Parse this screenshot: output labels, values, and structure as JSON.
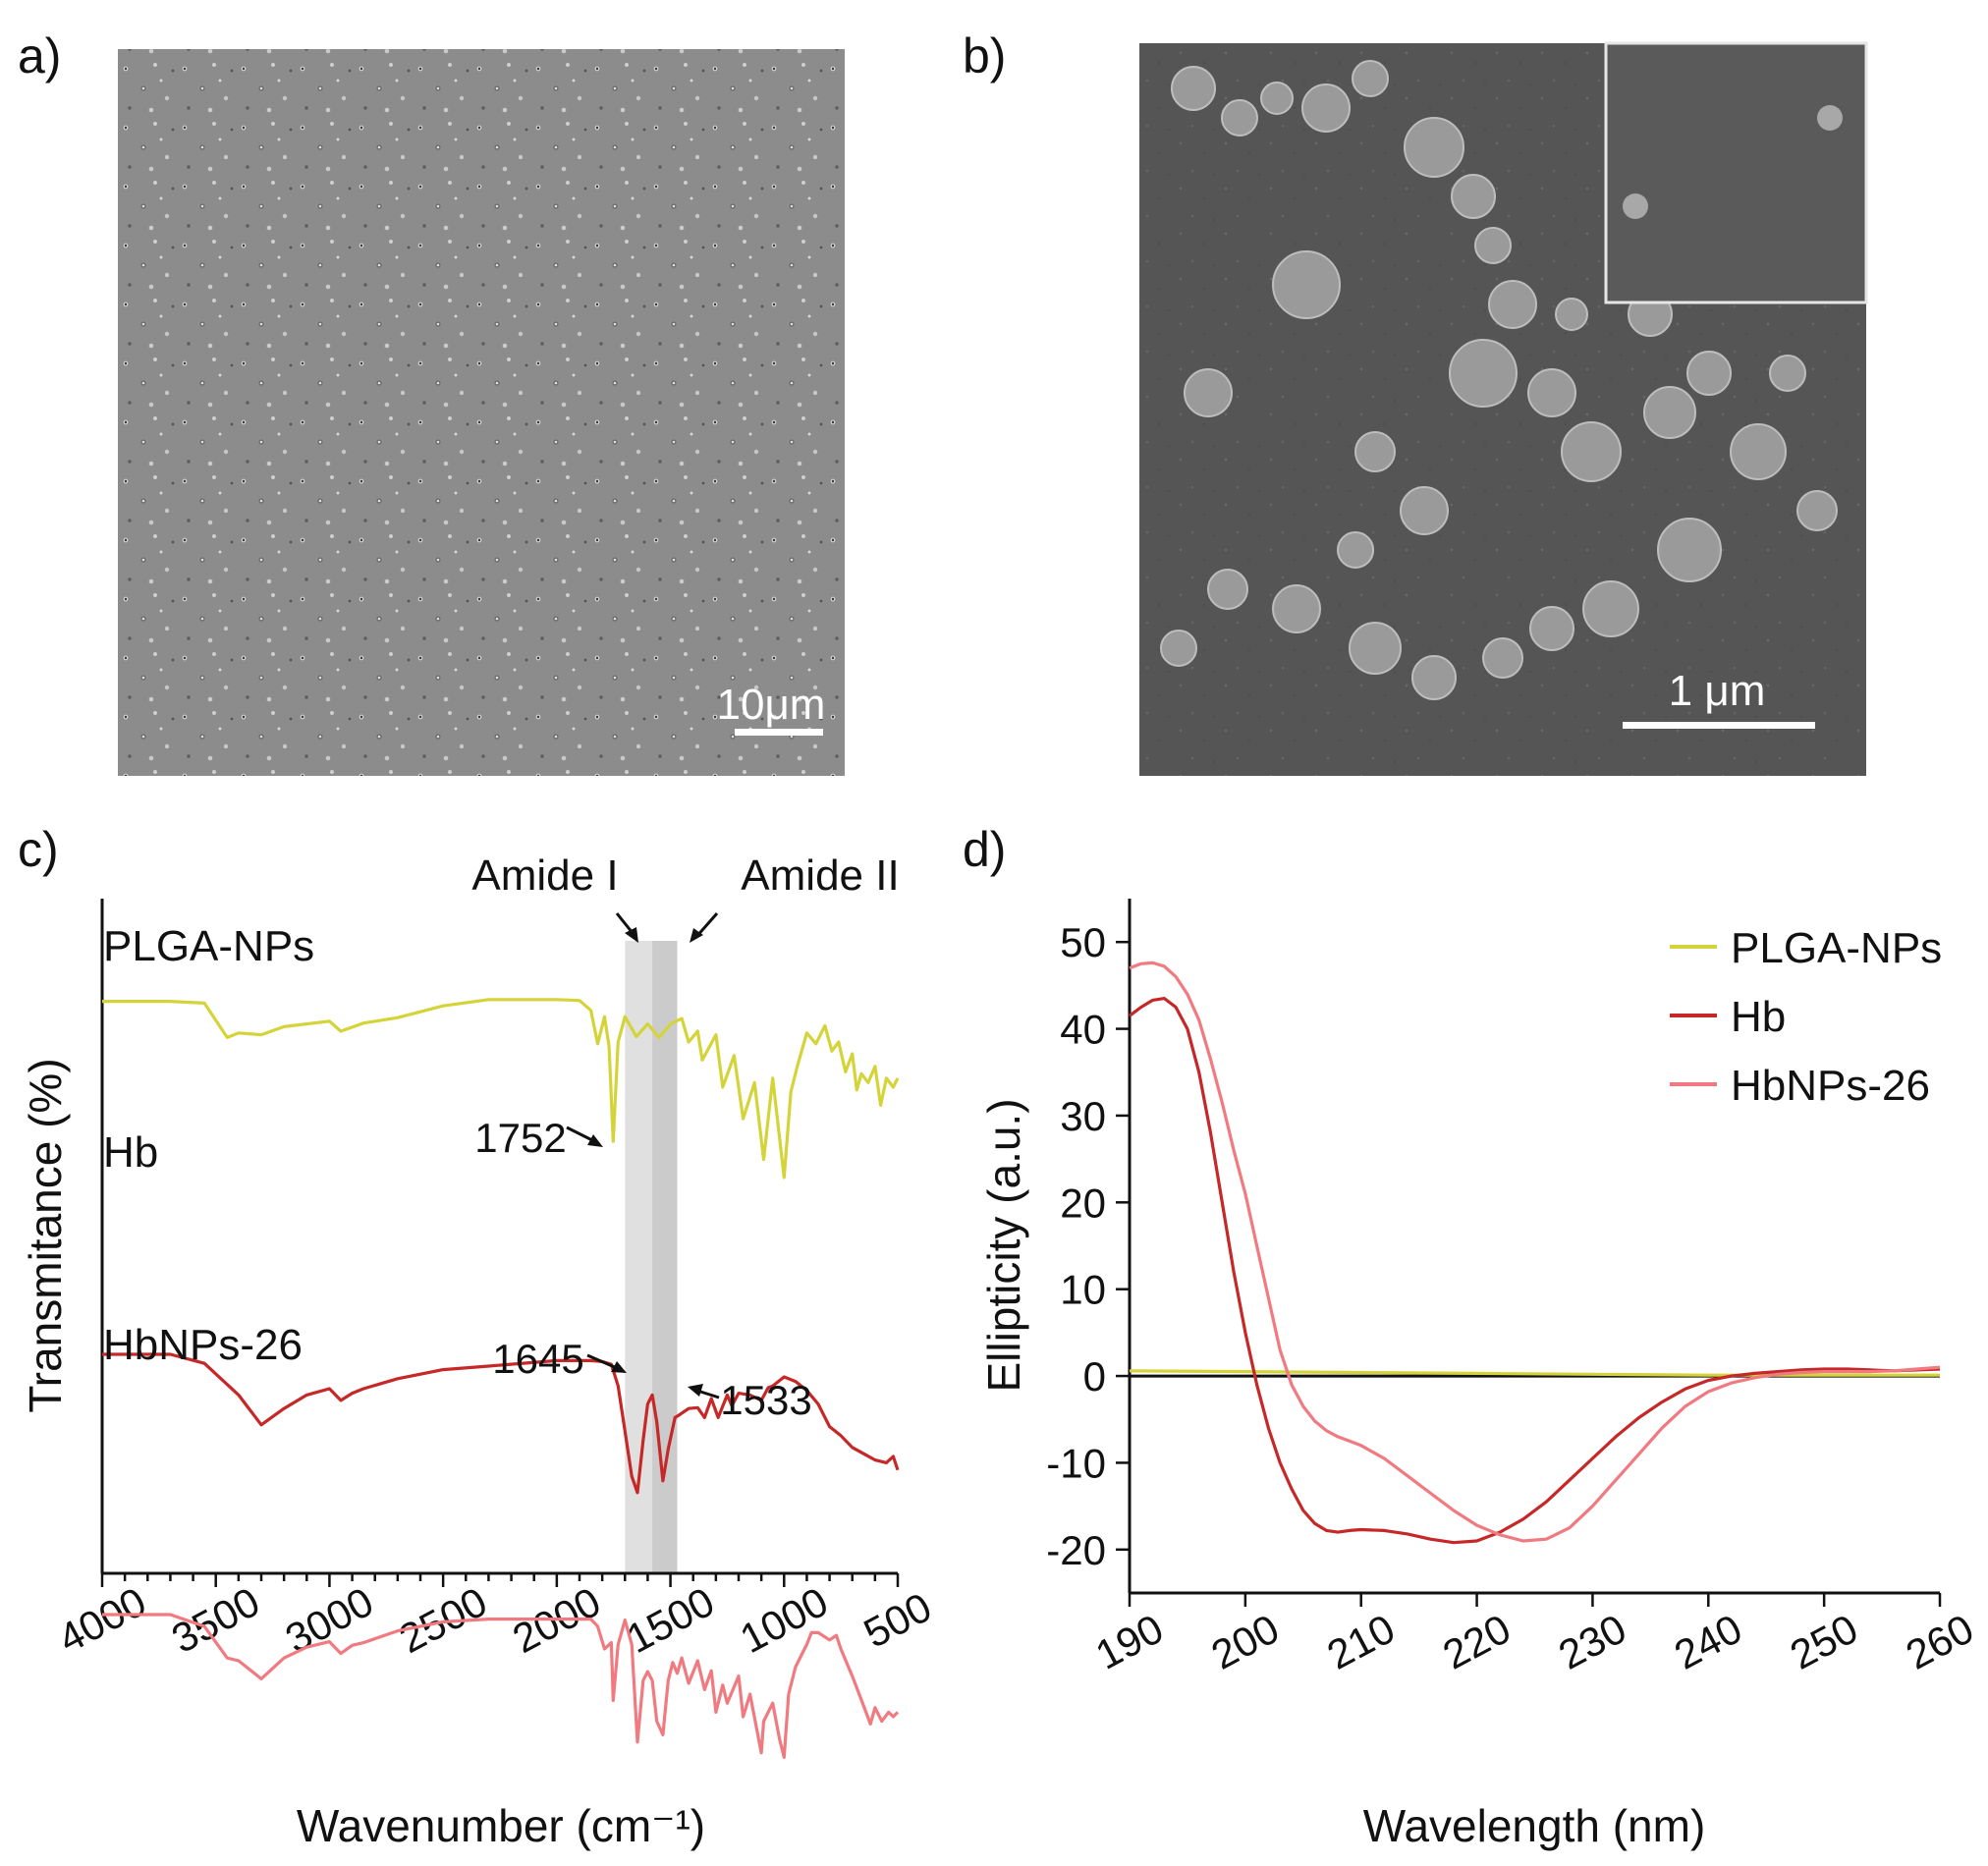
{
  "panels": {
    "a": {
      "label": "a)",
      "scale_bar": "10μm"
    },
    "b": {
      "label": "b)",
      "scale_bar": "1 μm"
    },
    "c": {
      "label": "c)"
    },
    "d": {
      "label": "d)"
    }
  },
  "chart_data": [
    {
      "type": "line",
      "panel": "c",
      "xlabel": "Wavenumber (cm⁻¹)",
      "ylabel": "Transmitance (%)",
      "xlim": [
        4000,
        500
      ],
      "x_ticks": [
        "4000",
        "3500",
        "3000",
        "2500",
        "2000",
        "1500",
        "1000",
        "500"
      ],
      "highlight_bands": [
        {
          "name": "Amide I",
          "from": 1700,
          "to": 1580
        },
        {
          "name": "Amide II",
          "from": 1580,
          "to": 1470
        }
      ],
      "series": [
        {
          "name": "PLGA-NPs",
          "color": "#d4d43a",
          "points": [
            [
              4000,
              0.5
            ],
            [
              3700,
              0.5
            ],
            [
              3550,
              0.7
            ],
            [
              3450,
              4.5
            ],
            [
              3400,
              4.0
            ],
            [
              3300,
              4.2
            ],
            [
              3200,
              3.3
            ],
            [
              3000,
              2.7
            ],
            [
              2950,
              3.8
            ],
            [
              2850,
              2.9
            ],
            [
              2700,
              2.3
            ],
            [
              2500,
              1.0
            ],
            [
              2300,
              0.3
            ],
            [
              2000,
              0.3
            ],
            [
              1900,
              0.4
            ],
            [
              1850,
              1.5
            ],
            [
              1820,
              5.2
            ],
            [
              1790,
              2.2
            ],
            [
              1770,
              5.5
            ],
            [
              1752,
              16.0
            ],
            [
              1730,
              5.0
            ],
            [
              1700,
              2.2
            ],
            [
              1650,
              4.4
            ],
            [
              1600,
              3.0
            ],
            [
              1550,
              4.5
            ],
            [
              1500,
              3.0
            ],
            [
              1450,
              2.4
            ],
            [
              1420,
              5.0
            ],
            [
              1380,
              3.8
            ],
            [
              1360,
              7.0
            ],
            [
              1300,
              4.2
            ],
            [
              1270,
              10.0
            ],
            [
              1220,
              6.5
            ],
            [
              1180,
              13.5
            ],
            [
              1130,
              9.5
            ],
            [
              1090,
              18.0
            ],
            [
              1050,
              9.0
            ],
            [
              1000,
              20.0
            ],
            [
              970,
              10.5
            ],
            [
              940,
              7.5
            ],
            [
              900,
              4.0
            ],
            [
              860,
              5.2
            ],
            [
              820,
              3.2
            ],
            [
              790,
              6.0
            ],
            [
              760,
              5.0
            ],
            [
              730,
              8.3
            ],
            [
              700,
              6.3
            ],
            [
              680,
              10.3
            ],
            [
              660,
              8.5
            ],
            [
              630,
              9.5
            ],
            [
              600,
              7.7
            ],
            [
              575,
              12.0
            ],
            [
              550,
              9.0
            ],
            [
              520,
              10.0
            ],
            [
              500,
              9.0
            ]
          ]
        },
        {
          "name": "Hb",
          "color": "#c62828",
          "points": [
            [
              4000,
              17.5
            ],
            [
              3700,
              17.5
            ],
            [
              3550,
              18.5
            ],
            [
              3400,
              22.0
            ],
            [
              3300,
              25.3
            ],
            [
              3200,
              23.5
            ],
            [
              3100,
              22.0
            ],
            [
              3000,
              21.3
            ],
            [
              2950,
              22.6
            ],
            [
              2900,
              21.8
            ],
            [
              2850,
              21.3
            ],
            [
              2700,
              20.2
            ],
            [
              2500,
              19.2
            ],
            [
              2300,
              18.8
            ],
            [
              2000,
              18.2
            ],
            [
              1850,
              18.2
            ],
            [
              1800,
              18.3
            ],
            [
              1760,
              18.6
            ],
            [
              1730,
              21.0
            ],
            [
              1700,
              26.0
            ],
            [
              1670,
              31.0
            ],
            [
              1645,
              32.8
            ],
            [
              1620,
              27.0
            ],
            [
              1600,
              23.0
            ],
            [
              1580,
              22.0
            ],
            [
              1560,
              25.0
            ],
            [
              1533,
              31.5
            ],
            [
              1510,
              28.0
            ],
            [
              1480,
              24.5
            ],
            [
              1460,
              24.2
            ],
            [
              1420,
              23.5
            ],
            [
              1380,
              23.4
            ],
            [
              1350,
              24.5
            ],
            [
              1320,
              22.4
            ],
            [
              1290,
              24.5
            ],
            [
              1250,
              22.0
            ],
            [
              1230,
              23.2
            ],
            [
              1200,
              21.8
            ],
            [
              1150,
              22.0
            ],
            [
              1100,
              22.6
            ],
            [
              1070,
              21.2
            ],
            [
              1050,
              21.0
            ],
            [
              1000,
              20.0
            ],
            [
              950,
              20.5
            ],
            [
              900,
              21.5
            ],
            [
              850,
              23.0
            ],
            [
              800,
              25.5
            ],
            [
              750,
              26.5
            ],
            [
              700,
              27.8
            ],
            [
              650,
              28.5
            ],
            [
              600,
              29.2
            ],
            [
              550,
              29.5
            ],
            [
              520,
              28.8
            ],
            [
              500,
              30.3
            ]
          ]
        },
        {
          "name": "HbNPs-26",
          "color": "#f07a80",
          "points": [
            [
              4000,
              26.2
            ],
            [
              3700,
              26.2
            ],
            [
              3550,
              27.5
            ],
            [
              3450,
              31.0
            ],
            [
              3400,
              31.3
            ],
            [
              3300,
              33.3
            ],
            [
              3200,
              31.0
            ],
            [
              3100,
              29.8
            ],
            [
              3000,
              29.2
            ],
            [
              2950,
              30.5
            ],
            [
              2900,
              29.6
            ],
            [
              2850,
              29.3
            ],
            [
              2700,
              28.0
            ],
            [
              2500,
              27.0
            ],
            [
              2300,
              26.7
            ],
            [
              2000,
              26.7
            ],
            [
              1850,
              26.7
            ],
            [
              1820,
              27.5
            ],
            [
              1790,
              30.0
            ],
            [
              1760,
              29.3
            ],
            [
              1752,
              35.7
            ],
            [
              1730,
              29.5
            ],
            [
              1700,
              26.8
            ],
            [
              1670,
              29.5
            ],
            [
              1645,
              40.3
            ],
            [
              1620,
              33.5
            ],
            [
              1600,
              32.5
            ],
            [
              1580,
              33.5
            ],
            [
              1560,
              38.0
            ],
            [
              1533,
              39.5
            ],
            [
              1510,
              33.5
            ],
            [
              1490,
              31.5
            ],
            [
              1470,
              32.7
            ],
            [
              1450,
              31.0
            ],
            [
              1420,
              33.8
            ],
            [
              1380,
              31.3
            ],
            [
              1350,
              34.5
            ],
            [
              1320,
              32.4
            ],
            [
              1300,
              37.0
            ],
            [
              1270,
              34.0
            ],
            [
              1250,
              36.0
            ],
            [
              1200,
              33.0
            ],
            [
              1180,
              37.5
            ],
            [
              1150,
              35.0
            ],
            [
              1100,
              41.5
            ],
            [
              1090,
              38.0
            ],
            [
              1050,
              36.0
            ],
            [
              1020,
              40.0
            ],
            [
              1000,
              42.0
            ],
            [
              980,
              35.0
            ],
            [
              950,
              32.0
            ],
            [
              900,
              29.5
            ],
            [
              880,
              28.2
            ],
            [
              850,
              28.2
            ],
            [
              800,
              29.0
            ],
            [
              770,
              28.5
            ],
            [
              750,
              30.0
            ],
            [
              700,
              33.0
            ],
            [
              650,
              36.3
            ],
            [
              620,
              38.3
            ],
            [
              600,
              36.5
            ],
            [
              570,
              38.0
            ],
            [
              540,
              37.0
            ],
            [
              520,
              37.5
            ],
            [
              500,
              37.0
            ]
          ]
        }
      ],
      "annotations": [
        "1752",
        "1645",
        "1533",
        "Amide I",
        "Amide II"
      ]
    },
    {
      "type": "line",
      "panel": "d",
      "xlabel": "Wavelength (nm)",
      "ylabel": "Ellipticity (a.u.)",
      "xlim": [
        190,
        260
      ],
      "ylim": [
        -25,
        55
      ],
      "x_ticks": [
        "190",
        "200",
        "210",
        "220",
        "230",
        "240",
        "250",
        "260"
      ],
      "y_ticks": [
        "50",
        "40",
        "30",
        "20",
        "10",
        "0",
        "-10",
        "-20"
      ],
      "legend": {
        "placement": "top-right",
        "entries": [
          "PLGA-NPs",
          "Hb",
          "HbNPs-26"
        ]
      },
      "series": [
        {
          "name": "PLGA-NPs",
          "color": "#d4d43a",
          "x": [
            190,
            200,
            210,
            220,
            230,
            240,
            250,
            260
          ],
          "y": [
            0.6,
            0.5,
            0.4,
            0.3,
            0.2,
            0.1,
            0.1,
            0.1
          ]
        },
        {
          "name": "Hb",
          "color": "#c62828",
          "x": [
            190,
            191,
            192,
            193,
            194,
            195,
            196,
            197,
            198,
            199,
            200,
            201,
            202,
            203,
            204,
            205,
            206,
            207,
            208,
            209,
            210,
            212,
            214,
            216,
            218,
            220,
            222,
            224,
            226,
            228,
            230,
            232,
            234,
            236,
            238,
            240,
            242,
            244,
            246,
            248,
            250,
            252,
            254,
            256,
            258,
            260
          ],
          "y": [
            41.5,
            42.5,
            43.3,
            43.5,
            42.5,
            40,
            35,
            28,
            20,
            12,
            5,
            -1,
            -6,
            -10,
            -13,
            -15.5,
            -17,
            -17.8,
            -18.0,
            -17.8,
            -17.7,
            -17.8,
            -18.2,
            -18.8,
            -19.2,
            -19.0,
            -18.0,
            -16.5,
            -14.5,
            -12.0,
            -9.5,
            -7.0,
            -4.8,
            -3.0,
            -1.5,
            -0.5,
            0.0,
            0.3,
            0.5,
            0.7,
            0.8,
            0.8,
            0.7,
            0.6,
            0.7,
            0.8
          ]
        },
        {
          "name": "HbNPs-26",
          "color": "#f07a80",
          "x": [
            190,
            191,
            192,
            193,
            194,
            195,
            196,
            197,
            198,
            199,
            200,
            201,
            202,
            203,
            204,
            205,
            206,
            207,
            208,
            209,
            210,
            212,
            214,
            216,
            218,
            220,
            222,
            224,
            226,
            228,
            230,
            232,
            234,
            236,
            238,
            240,
            242,
            244,
            246,
            248,
            250,
            252,
            254,
            256,
            258,
            260
          ],
          "y": [
            47,
            47.5,
            47.6,
            47.2,
            46,
            44,
            41,
            36.5,
            31.5,
            26,
            21,
            15,
            9,
            3,
            -1,
            -3.5,
            -5.2,
            -6.3,
            -7.0,
            -7.5,
            -8.0,
            -9.5,
            -11.5,
            -13.5,
            -15.5,
            -17.2,
            -18.3,
            -19.0,
            -18.8,
            -17.5,
            -15.0,
            -12.0,
            -9.0,
            -6.0,
            -3.5,
            -1.8,
            -0.8,
            -0.2,
            0.2,
            0.4,
            0.5,
            0.5,
            0.5,
            0.6,
            0.8,
            1.0
          ]
        }
      ]
    }
  ]
}
